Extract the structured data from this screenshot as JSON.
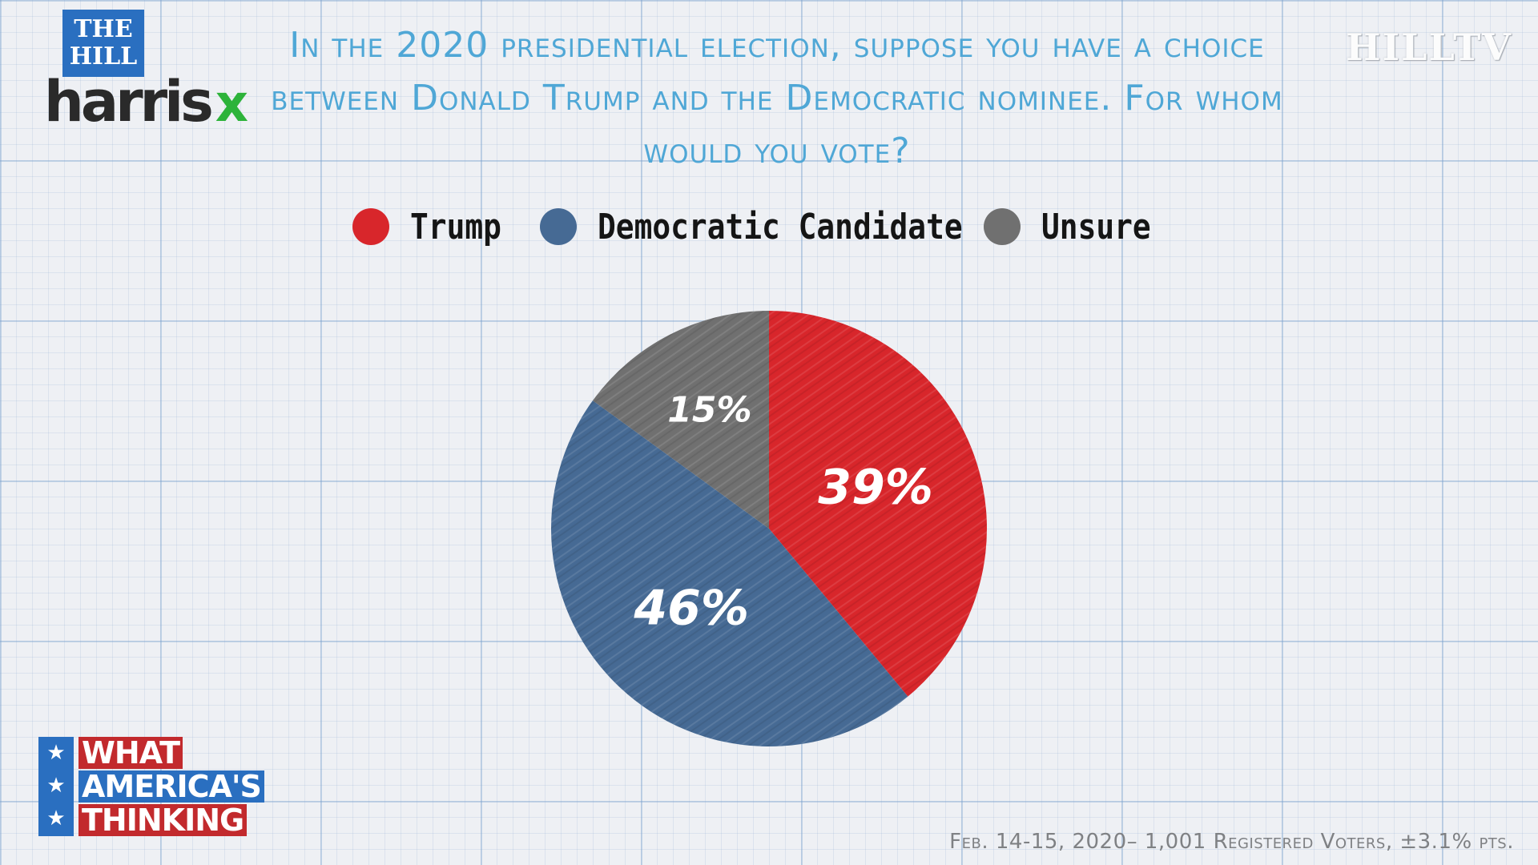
{
  "logos": {
    "hill_line1": "THE",
    "hill_line2": "HILL",
    "harris_text": "harris",
    "harris_x": "x",
    "hilltv": "HILLTV",
    "wat_line1": "WHAT",
    "wat_line2": "AMERICA'S",
    "wat_line3": "THINKING",
    "wat_star": "★"
  },
  "chart_data": {
    "type": "pie",
    "title": "In the 2020 presidential election, suppose you have a choice between Donald Trump and the Democratic nominee. For whom would you vote?",
    "slices": [
      {
        "label": "Trump",
        "value": 39,
        "display": "39%",
        "color": "#d8262b"
      },
      {
        "label": "Democratic Candidate",
        "value": 46,
        "display": "46%",
        "color": "#466a94"
      },
      {
        "label": "Unsure",
        "value": 15,
        "display": "15%",
        "color": "#707070"
      }
    ],
    "legend_position": "top"
  },
  "footer": "Feb. 14-15, 2020– 1,001  Registered Voters, ±3.1% pts."
}
